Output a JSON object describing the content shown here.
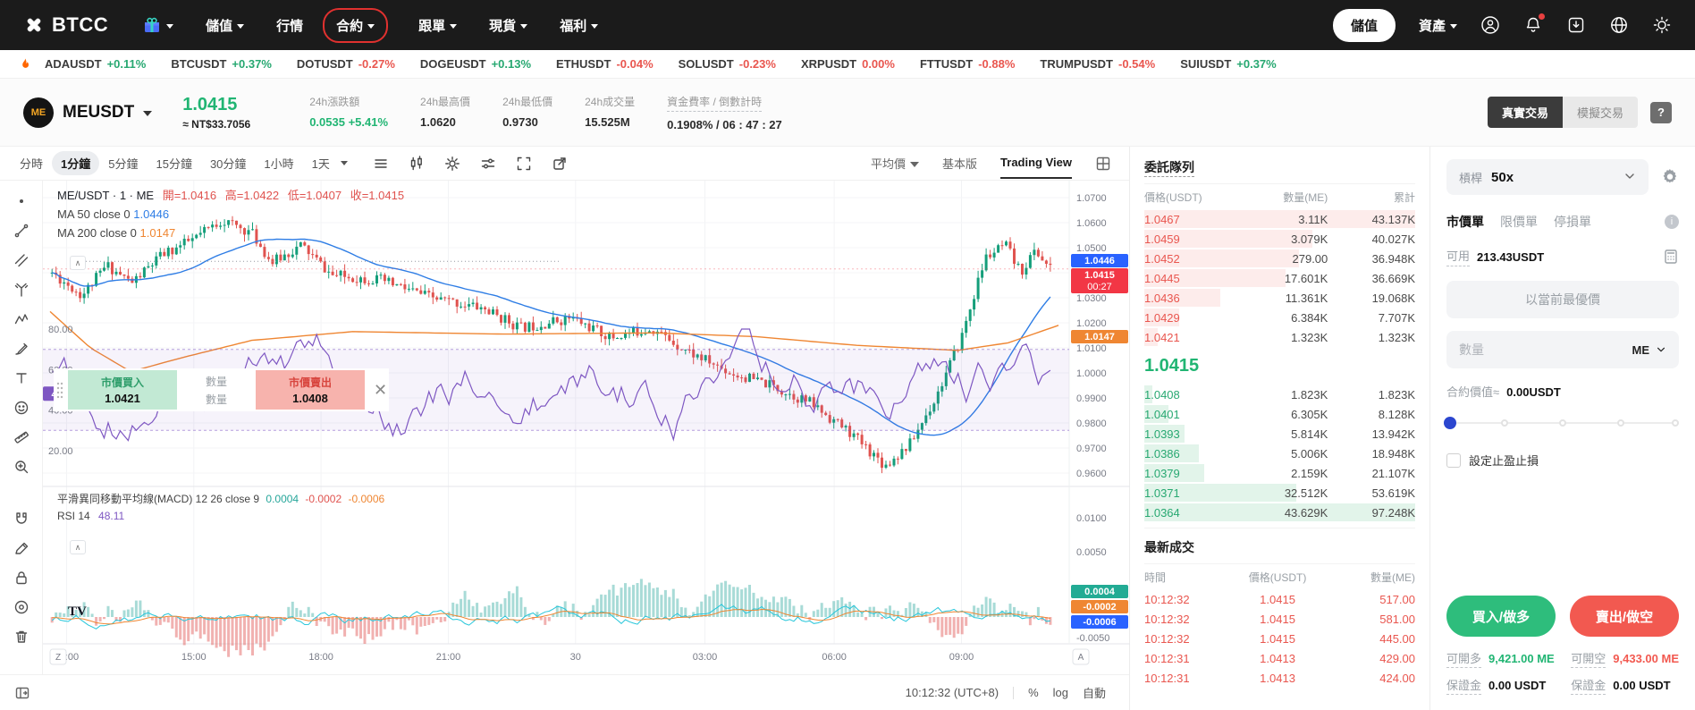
{
  "colors": {
    "nav_bg": "#1b1b1b",
    "accent_green": "#21b573",
    "accent_red": "#f25950",
    "up": "#27a871",
    "down": "#e9564f",
    "candle_up": "#149e7a",
    "candle_down": "#e0534f",
    "ma50": "#2e7de5",
    "ma200": "#ef8632",
    "rsi_purple": "#7e57c2",
    "tag_blue": "#2962ff",
    "tag_red": "#f23645",
    "tag_orange": "#ef8632",
    "ask_depth": "#fdeceb",
    "bid_depth": "#e2f4ea",
    "annotation_ring": "#e0312f",
    "slider_active": "#2b46cf"
  },
  "nav": {
    "brand": "BTCC",
    "items": [
      {
        "label": "儲值",
        "caret": true,
        "highlight": false
      },
      {
        "label": "行情",
        "caret": false,
        "highlight": false
      },
      {
        "label": "合約",
        "caret": true,
        "highlight": true
      },
      {
        "label": "跟單",
        "caret": true,
        "highlight": false
      },
      {
        "label": "現貨",
        "caret": true,
        "highlight": false
      },
      {
        "label": "福利",
        "caret": true,
        "highlight": false
      }
    ],
    "deposit_button": "儲值",
    "assets_label": "資產",
    "icons": [
      "gift-icon",
      "promo-icon",
      "profile-icon",
      "bell-icon",
      "download-icon",
      "globe-icon",
      "theme-icon"
    ]
  },
  "ticker": {
    "flame_icon": "flame-icon",
    "items": [
      {
        "symbol": "ADAUSDT",
        "change": "+0.11%",
        "dir": "up"
      },
      {
        "symbol": "BTCUSDT",
        "change": "+0.37%",
        "dir": "up"
      },
      {
        "symbol": "DOTUSDT",
        "change": "-0.27%",
        "dir": "down"
      },
      {
        "symbol": "DOGEUSDT",
        "change": "+0.13%",
        "dir": "up"
      },
      {
        "symbol": "ETHUSDT",
        "change": "-0.04%",
        "dir": "down"
      },
      {
        "symbol": "SOLUSDT",
        "change": "-0.23%",
        "dir": "down"
      },
      {
        "symbol": "XRPUSDT",
        "change": "0.00%",
        "dir": "down"
      },
      {
        "symbol": "FTTUSDT",
        "change": "-0.88%",
        "dir": "down"
      },
      {
        "symbol": "TRUMPUSDT",
        "change": "-0.54%",
        "dir": "down"
      },
      {
        "symbol": "SUIUSDT",
        "change": "+0.37%",
        "dir": "up"
      }
    ]
  },
  "symbol_bar": {
    "pair": "MEUSDT",
    "coin_badge": "ME",
    "price": "1.0415",
    "approx": "≈ NT$33.7056",
    "stats": [
      {
        "label": "24h漲跌額",
        "value": "0.0535 +5.41%",
        "tone": "up",
        "dashed": false
      },
      {
        "label": "24h最高價",
        "value": "1.0620",
        "tone": "normal",
        "dashed": false
      },
      {
        "label": "24h最低價",
        "value": "0.9730",
        "tone": "normal",
        "dashed": false
      },
      {
        "label": "24h成交量",
        "value": "15.525M",
        "tone": "normal",
        "dashed": false
      },
      {
        "label": "資金費率 / 倒數計時",
        "value": "0.1908% / 06 : 47 : 27",
        "tone": "normal",
        "dashed": true
      }
    ],
    "mode_real": "真實交易",
    "mode_demo": "模擬交易",
    "help": "?"
  },
  "toolbar": {
    "intervals": [
      "分時",
      "1分鐘",
      "5分鐘",
      "15分鐘",
      "30分鐘",
      "1小時",
      "1天"
    ],
    "active_interval": "1分鐘",
    "icons": [
      "indicators-icon",
      "candle-style-icon",
      "gear-icon",
      "settings-sliders-icon",
      "fullscreen-icon",
      "share-icon"
    ],
    "avg_price": "平均價",
    "basic": "基本版",
    "tradingview": "Trading View",
    "grid_icon": "layout-grid-icon"
  },
  "tools_sidebar": {
    "icons": [
      "cursor-dot",
      "trend-line",
      "channels",
      "pitchfork",
      "pattern",
      "brush",
      "text",
      "emoji",
      "ruler",
      "zoom-in",
      "magnet",
      "edit",
      "lock",
      "hide",
      "trash"
    ]
  },
  "chart_data": {
    "type": "candlestick",
    "title": "ME/USDT · 1 · ME",
    "legend": {
      "open_label": "開=",
      "open": "1.0416",
      "high_label": "高=",
      "high": "1.0422",
      "low_label": "低=",
      "low": "1.0407",
      "close_label": "收=",
      "close": "1.0415"
    },
    "ma50_label": "MA 50 close 0",
    "ma50": "1.0446",
    "ma200_label": "MA 200 close 0",
    "ma200": "1.0147",
    "price_axis_ticks": [
      "1.0700",
      "1.0600",
      "1.0500",
      "1.0400",
      "1.0300",
      "1.0200",
      "1.0100",
      "1.0000",
      "0.9900",
      "0.9800",
      "0.9700",
      "0.9600"
    ],
    "price_range": [
      0.955,
      1.0768
    ],
    "price_tags": [
      {
        "label": "1.0446",
        "color": "#2962ff"
      },
      {
        "label": "1.0415",
        "sub": "00:27",
        "color": "#f23645"
      },
      {
        "label": "1.0147",
        "color": "#ef8632"
      }
    ],
    "time_ticks": [
      "12:00",
      "15:00",
      "18:00",
      "21:00",
      "30",
      "03:00",
      "06:00",
      "09:00"
    ],
    "price_path_anchors": [
      [
        0,
        1.04
      ],
      [
        0.03,
        1.031
      ],
      [
        0.055,
        1.043
      ],
      [
        0.08,
        1.036
      ],
      [
        0.11,
        1.047
      ],
      [
        0.14,
        1.053
      ],
      [
        0.17,
        1.061
      ],
      [
        0.2,
        1.056
      ],
      [
        0.22,
        1.044
      ],
      [
        0.25,
        1.051
      ],
      [
        0.28,
        1.039
      ],
      [
        0.33,
        1.037
      ],
      [
        0.38,
        1.03
      ],
      [
        0.43,
        1.026
      ],
      [
        0.47,
        1.018
      ],
      [
        0.52,
        1.022
      ],
      [
        0.56,
        1.014
      ],
      [
        0.6,
        1.018
      ],
      [
        0.64,
        1.008
      ],
      [
        0.68,
        1.0
      ],
      [
        0.72,
        0.995
      ],
      [
        0.76,
        0.988
      ],
      [
        0.8,
        0.976
      ],
      [
        0.835,
        0.963
      ],
      [
        0.86,
        0.972
      ],
      [
        0.885,
        0.99
      ],
      [
        0.91,
        1.013
      ],
      [
        0.935,
        1.046
      ],
      [
        0.955,
        1.051
      ],
      [
        0.97,
        1.04
      ],
      [
        0.985,
        1.049
      ],
      [
        1,
        1.0415
      ]
    ],
    "ma200_anchors": [
      [
        0,
        1.0245
      ],
      [
        0.04,
        1.01
      ],
      [
        0.08,
        1.0005
      ],
      [
        0.13,
        1.006
      ],
      [
        0.2,
        1.013
      ],
      [
        0.3,
        1.0165
      ],
      [
        0.45,
        1.0155
      ],
      [
        0.6,
        1.016
      ],
      [
        0.7,
        1.0145
      ],
      [
        0.8,
        1.011
      ],
      [
        0.9,
        1.009
      ],
      [
        0.95,
        1.012
      ],
      [
        1,
        1.019
      ]
    ],
    "macd_panel": {
      "title": "平滑異同移動平均線(MACD) 12 26 close 9",
      "macd_values": [
        {
          "value": "0.0004",
          "color": "#26a69a"
        },
        {
          "value": "-0.0002",
          "color": "#e0534f"
        },
        {
          "value": "-0.0006",
          "color": "#ef8632"
        }
      ],
      "rsi_label": "RSI 14",
      "rsi_value": "48.11",
      "right_ticks": [
        "0.0100",
        "0.0050",
        "-0.0050"
      ],
      "right_tags": [
        {
          "label": "0.0004",
          "color": "#22ab94"
        },
        {
          "label": "-0.0002",
          "color": "#ef8632"
        },
        {
          "label": "-0.0006",
          "color": "#2962ff"
        }
      ],
      "left_ticks": [
        "80.00",
        "60.00",
        "40.00",
        "20.00"
      ],
      "left_tag": {
        "label": "48.11",
        "color": "#7e57c2"
      }
    }
  },
  "orderbook": {
    "title": "委託隊列",
    "columns": [
      "價格(USDT)",
      "數量(ME)",
      "累計"
    ],
    "asks": [
      {
        "price": "1.0467",
        "qty": "3.11K",
        "total": "43.137K",
        "depth": 100
      },
      {
        "price": "1.0459",
        "qty": "3.079K",
        "total": "40.027K",
        "depth": 62
      },
      {
        "price": "1.0452",
        "qty": "279.00",
        "total": "36.948K",
        "depth": 57
      },
      {
        "price": "1.0445",
        "qty": "17.601K",
        "total": "36.669K",
        "depth": 52
      },
      {
        "price": "1.0436",
        "qty": "11.361K",
        "total": "19.068K",
        "depth": 28
      },
      {
        "price": "1.0429",
        "qty": "6.384K",
        "total": "7.707K",
        "depth": 13
      },
      {
        "price": "1.0421",
        "qty": "1.323K",
        "total": "1.323K",
        "depth": 5
      }
    ],
    "last_price": "1.0415",
    "bids": [
      {
        "price": "1.0408",
        "qty": "1.823K",
        "total": "1.823K",
        "depth": 3
      },
      {
        "price": "1.0401",
        "qty": "6.305K",
        "total": "8.128K",
        "depth": 9
      },
      {
        "price": "1.0393",
        "qty": "5.814K",
        "total": "13.942K",
        "depth": 15
      },
      {
        "price": "1.0386",
        "qty": "5.006K",
        "total": "18.948K",
        "depth": 20
      },
      {
        "price": "1.0379",
        "qty": "2.159K",
        "total": "21.107K",
        "depth": 22
      },
      {
        "price": "1.0371",
        "qty": "32.512K",
        "total": "53.619K",
        "depth": 56
      },
      {
        "price": "1.0364",
        "qty": "43.629K",
        "total": "97.248K",
        "depth": 100
      }
    ]
  },
  "trades": {
    "title": "最新成交",
    "columns": [
      "時間",
      "價格(USDT)",
      "數量(ME)"
    ],
    "rows": [
      {
        "time": "10:12:32",
        "price": "1.0415",
        "qty": "517.00"
      },
      {
        "time": "10:12:32",
        "price": "1.0415",
        "qty": "581.00"
      },
      {
        "time": "10:12:32",
        "price": "1.0415",
        "qty": "445.00"
      },
      {
        "time": "10:12:31",
        "price": "1.0413",
        "qty": "429.00"
      },
      {
        "time": "10:12:31",
        "price": "1.0413",
        "qty": "424.00"
      }
    ]
  },
  "trade_panel": {
    "leverage_label": "槓桿",
    "leverage": "50x",
    "tabs": [
      "市價單",
      "限價單",
      "停損單"
    ],
    "active_tab": "市價單",
    "avail_label": "可用",
    "avail_value": "213.43USDT",
    "best_price_button": "以當前最優價",
    "qty_placeholder": "數量",
    "unit": "ME",
    "value_label": "合約價值≈",
    "value": "0.00USDT",
    "slider_percent": 0,
    "tpsl_label": "設定止盈止損",
    "tpsl_checked": false,
    "buy_button": "買入/做多",
    "sell_button": "賣出/做空",
    "open_long_label": "可開多",
    "open_long": "9,421.00 ME",
    "open_short_label": "可開空",
    "open_short": "9,433.00 ME",
    "margin_label": "保證金",
    "margin_long": "0.00 USDT",
    "margin_short": "0.00 USDT"
  },
  "float_widget": {
    "buy_label": "市價買入",
    "buy_price": "1.0421",
    "qty_top": "數量",
    "qty_bottom": "數量",
    "sell_label": "市價賣出",
    "sell_price": "1.0408"
  },
  "statusbar": {
    "time": "10:12:32 (UTC+8)",
    "percent": "%",
    "log": "log",
    "auto": "自動"
  },
  "chart_overlay": {
    "zoom_reset": "Z",
    "auto_scale": "A",
    "tv_logo": "TV",
    "collapse_glyph": "∧"
  }
}
